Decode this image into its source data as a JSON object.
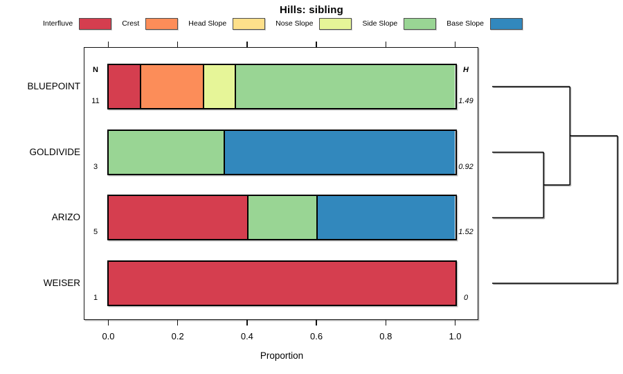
{
  "title": "Hills: sibling",
  "legend": [
    {
      "label": "Interfluve",
      "color": "#d53e4f"
    },
    {
      "label": "Crest",
      "color": "#fc8d59"
    },
    {
      "label": "Head Slope",
      "color": "#fee08b"
    },
    {
      "label": "Nose Slope",
      "color": "#e6f598"
    },
    {
      "label": "Side Slope",
      "color": "#99d594"
    },
    {
      "label": "Base Slope",
      "color": "#3288bd"
    }
  ],
  "chart_data": {
    "type": "bar",
    "variant": "horizontal-stacked-proportion-with-dendrogram",
    "title": "Hills: sibling",
    "xlabel": "Proportion",
    "xlim": [
      0,
      1
    ],
    "x_ticks": [
      0.0,
      0.2,
      0.4,
      0.6,
      0.8,
      1.0
    ],
    "x_tick_labels": [
      "0.0",
      "0.2",
      "0.4",
      "0.6",
      "0.8",
      "1.0"
    ],
    "categories": [
      "Interfluve",
      "Crest",
      "Head Slope",
      "Nose Slope",
      "Side Slope",
      "Base Slope"
    ],
    "colors": {
      "Interfluve": "#d53e4f",
      "Crest": "#fc8d59",
      "Head Slope": "#fee08b",
      "Nose Slope": "#e6f598",
      "Side Slope": "#99d594",
      "Base Slope": "#3288bd"
    },
    "columns": {
      "n_header": "N",
      "h_header": "H"
    },
    "rows": [
      {
        "label": "BLUEPOINT",
        "n": "11",
        "h": "1.49",
        "segments": [
          [
            "Interfluve",
            0.091
          ],
          [
            "Crest",
            0.182
          ],
          [
            "Nose Slope",
            0.091
          ],
          [
            "Side Slope",
            0.636
          ]
        ]
      },
      {
        "label": "GOLDIVIDE",
        "n": "3",
        "h": "0.92",
        "segments": [
          [
            "Side Slope",
            0.333
          ],
          [
            "Base Slope",
            0.667
          ]
        ]
      },
      {
        "label": "ARIZO",
        "n": "5",
        "h": "1.52",
        "segments": [
          [
            "Interfluve",
            0.4
          ],
          [
            "Side Slope",
            0.2
          ],
          [
            "Base Slope",
            0.4
          ]
        ]
      },
      {
        "label": "WEISER",
        "n": "1",
        "h": "0",
        "segments": [
          [
            "Interfluve",
            1.0
          ]
        ]
      }
    ],
    "dendrogram": {
      "orientation": "right-of-bars",
      "leaf_order": [
        "BLUEPOINT",
        "GOLDIVIDE",
        "ARIZO",
        "WEISER"
      ],
      "merges": [
        {
          "id": "m1",
          "children": [
            "GOLDIVIDE",
            "ARIZO"
          ],
          "height": 0.41
        },
        {
          "id": "m2",
          "children": [
            "BLUEPOINT",
            "m1"
          ],
          "height": 0.62
        },
        {
          "id": "m3",
          "children": [
            "m2",
            "WEISER"
          ],
          "height": 1.0
        }
      ]
    }
  }
}
